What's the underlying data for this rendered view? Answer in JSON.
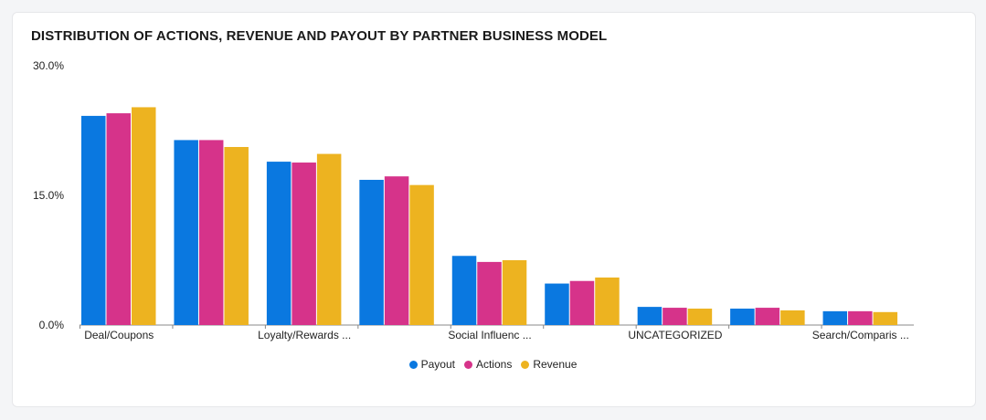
{
  "chart_data": {
    "type": "bar",
    "title": "DISTRIBUTION OF ACTIONS, REVENUE AND PAYOUT BY PARTNER BUSINESS MODEL",
    "xlabel": "",
    "ylabel": "",
    "ylim": [
      0,
      30
    ],
    "y_ticks": [
      "0.0%",
      "15.0%",
      "30.0%"
    ],
    "y_tick_values": [
      0,
      15,
      30
    ],
    "categories": [
      "Deal/Coupons",
      "",
      "Loyalty/Rewards ...",
      "",
      "Social Influenc ...",
      "",
      "UNCATEGORIZED",
      "",
      "Search/Comparis ..."
    ],
    "series": [
      {
        "name": "Payout",
        "color": "#0a78e0",
        "values": [
          24.2,
          21.4,
          18.9,
          16.8,
          8.0,
          4.8,
          2.1,
          1.9,
          1.6
        ]
      },
      {
        "name": "Actions",
        "color": "#d6338a",
        "values": [
          24.5,
          21.4,
          18.8,
          17.2,
          7.3,
          5.1,
          2.0,
          2.0,
          1.6
        ]
      },
      {
        "name": "Revenue",
        "color": "#edb320",
        "values": [
          25.2,
          20.6,
          19.8,
          16.2,
          7.5,
          5.5,
          1.9,
          1.7,
          1.5
        ]
      }
    ],
    "legend_position": "bottom",
    "grid": false
  }
}
